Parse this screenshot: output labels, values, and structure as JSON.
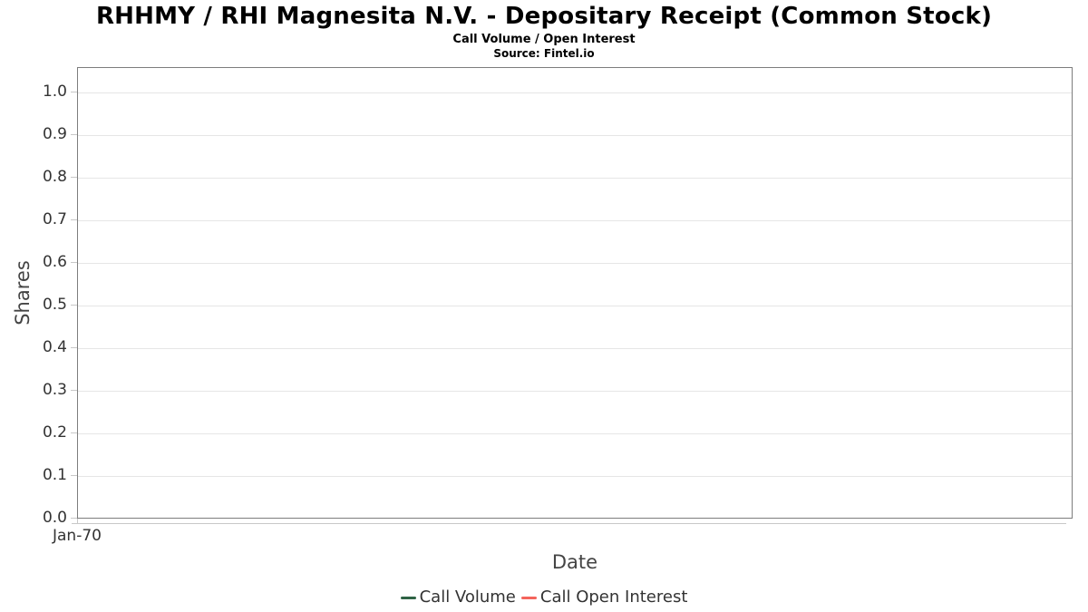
{
  "header": {
    "title": "RHHMY / RHI Magnesita N.V. - Depositary Receipt (Common Stock)",
    "subtitle": "Call Volume / Open Interest",
    "source": "Source: Fintel.io"
  },
  "axes": {
    "y_label": "Shares",
    "x_label": "Date",
    "y_ticks": [
      "1.0",
      "0.9",
      "0.8",
      "0.7",
      "0.6",
      "0.5",
      "0.4",
      "0.3",
      "0.2",
      "0.1",
      "0.0"
    ],
    "x_ticks": [
      "Jan-70"
    ]
  },
  "legend": {
    "items": [
      {
        "label": "Call Volume",
        "color": "#2f6345"
      },
      {
        "label": "Call Open Interest",
        "color": "#f4645c"
      }
    ]
  },
  "colors": {
    "plot_border": "#7d7d7d",
    "gridline": "#e6e6e6",
    "tick_text": "#333333",
    "axis_title_text": "#444444"
  },
  "chart_data": {
    "type": "line",
    "title": "RHHMY / RHI Magnesita N.V. - Depositary Receipt (Common Stock)",
    "subtitle": "Call Volume / Open Interest",
    "source": "Source: Fintel.io",
    "xlabel": "Date",
    "ylabel": "Shares",
    "ylim": [
      0.0,
      1.05
    ],
    "yticks": [
      0.0,
      0.1,
      0.2,
      0.3,
      0.4,
      0.5,
      0.6,
      0.7,
      0.8,
      0.9,
      1.0
    ],
    "x": [
      "Jan-70"
    ],
    "series": [
      {
        "name": "Call Volume",
        "color": "#2f6345",
        "values": []
      },
      {
        "name": "Call Open Interest",
        "color": "#f4645c",
        "values": []
      }
    ],
    "grid": true,
    "legend_position": "bottom"
  }
}
